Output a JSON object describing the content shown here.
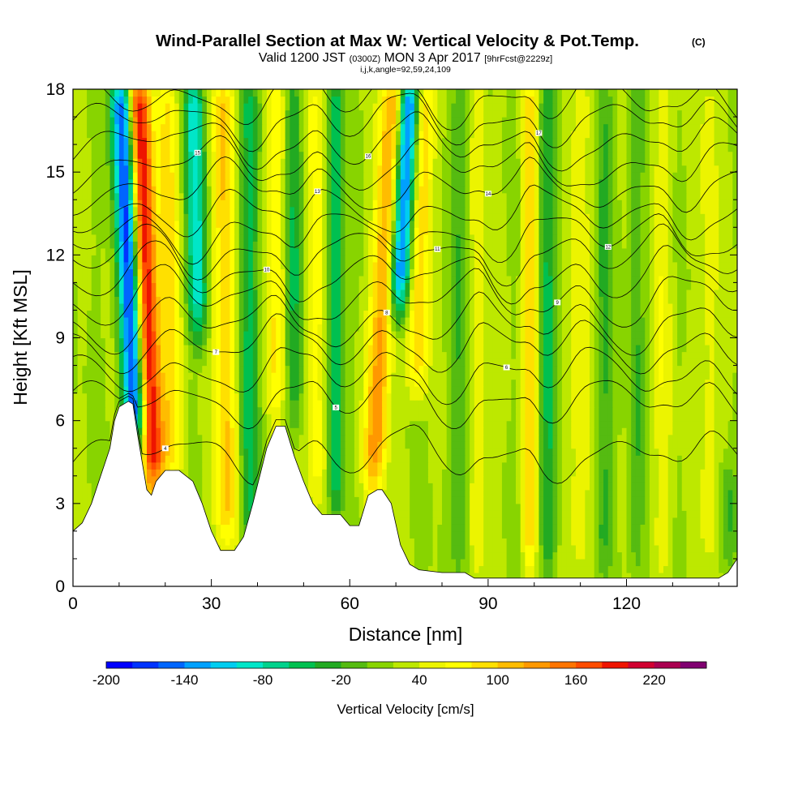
{
  "chart_data": {
    "type": "heatmap",
    "title": "Wind-Parallel Section at Max W: Vertical Velocity & Pot.Temp.",
    "title_mark": "(C)",
    "subtitle_parts": [
      "Valid 1200 JST",
      "(0300Z)",
      "MON 3 Apr 2017",
      "[9hrFcst@2229z]"
    ],
    "subtitle2": "i,j,k,angle=92,59,24,109",
    "xlabel": "Distance [nm]",
    "ylabel": "Height [Kft MSL]",
    "xlim": [
      0,
      144
    ],
    "ylim": [
      0,
      18
    ],
    "xticks": [
      "0",
      "30",
      "60",
      "90",
      "120"
    ],
    "yticks": [
      "0",
      "3",
      "6",
      "9",
      "12",
      "15",
      "18"
    ],
    "colorbar": {
      "label": "Vertical Velocity [cm/s]",
      "range": [
        -200,
        240
      ],
      "step": 20,
      "tick_labels": [
        "-200",
        "-140",
        "-80",
        "-20",
        "40",
        "100",
        "160",
        "220"
      ],
      "colors": [
        "#0000ff",
        "#0033ff",
        "#0066ff",
        "#00a0ff",
        "#00cdf0",
        "#00e6c8",
        "#00d28c",
        "#00c050",
        "#22aa22",
        "#55bb11",
        "#88d400",
        "#bde800",
        "#ecf400",
        "#ffff00",
        "#ffe000",
        "#ffbc00",
        "#ff9800",
        "#ff7400",
        "#ff4c00",
        "#ee1400",
        "#d00030",
        "#aa0050",
        "#800070"
      ]
    },
    "terrain": [
      [
        0,
        2
      ],
      [
        2,
        2.3
      ],
      [
        4,
        3
      ],
      [
        6,
        4
      ],
      [
        8,
        5
      ],
      [
        9,
        6
      ],
      [
        10,
        6.5
      ],
      [
        12,
        6.7
      ],
      [
        13,
        6.6
      ],
      [
        14,
        5.5
      ],
      [
        15,
        4.5
      ],
      [
        16,
        3.5
      ],
      [
        17,
        3.3
      ],
      [
        18,
        3.8
      ],
      [
        20,
        4.2
      ],
      [
        23,
        4.2
      ],
      [
        26,
        3.8
      ],
      [
        28,
        3
      ],
      [
        30,
        2
      ],
      [
        32,
        1.3
      ],
      [
        35,
        1.3
      ],
      [
        37,
        1.8
      ],
      [
        39,
        3
      ],
      [
        42,
        5
      ],
      [
        44,
        5.8
      ],
      [
        46,
        5.8
      ],
      [
        48,
        4.7
      ],
      [
        50,
        3.8
      ],
      [
        52,
        3
      ],
      [
        54,
        2.6
      ],
      [
        58,
        2.6
      ],
      [
        60,
        2.2
      ],
      [
        62,
        2.2
      ],
      [
        64,
        3.3
      ],
      [
        66,
        3.5
      ],
      [
        67,
        3.5
      ],
      [
        69,
        3
      ],
      [
        71,
        1.5
      ],
      [
        73,
        0.8
      ],
      [
        75,
        0.6
      ],
      [
        80,
        0.5
      ],
      [
        85,
        0.5
      ],
      [
        87,
        0.3
      ],
      [
        100,
        0.3
      ],
      [
        120,
        0.3
      ],
      [
        140,
        0.3
      ],
      [
        142,
        0.5
      ],
      [
        144,
        1
      ]
    ],
    "updrafts": [
      {
        "x": 16,
        "width": 2.6,
        "amplitude": 185,
        "ybottom": 3.5,
        "ytop": 18,
        "tilt": -0.25
      },
      {
        "x": 21,
        "width": 2.2,
        "amplitude": 70,
        "ybottom": 4,
        "ytop": 18,
        "tilt": -0.1
      },
      {
        "x": 33,
        "width": 2.5,
        "amplitude": 85,
        "ybottom": 1.5,
        "ytop": 18,
        "tilt": -0.05
      },
      {
        "x": 44,
        "width": 2,
        "amplitude": 55,
        "ybottom": 6,
        "ytop": 18,
        "tilt": 0
      },
      {
        "x": 53,
        "width": 2,
        "amplitude": 50,
        "ybottom": 3,
        "ytop": 18,
        "tilt": -0.05
      },
      {
        "x": 67,
        "width": 2.6,
        "amplitude": 110,
        "ybottom": 3.5,
        "ytop": 18,
        "tilt": 0.3
      },
      {
        "x": 75,
        "width": 2.2,
        "amplitude": 80,
        "ybottom": 7,
        "ytop": 18,
        "tilt": 0.15
      },
      {
        "x": 88,
        "width": 1.8,
        "amplitude": 40,
        "ybottom": 0.5,
        "ytop": 18,
        "tilt": 0
      },
      {
        "x": 99,
        "width": 1.6,
        "amplitude": 75,
        "ybottom": 0.5,
        "ytop": 18,
        "tilt": 0
      },
      {
        "x": 110,
        "width": 2.2,
        "amplitude": 40,
        "ybottom": 0.5,
        "ytop": 18,
        "tilt": 0
      },
      {
        "x": 128,
        "width": 2,
        "amplitude": 35,
        "ybottom": 0.5,
        "ytop": 18,
        "tilt": 0
      },
      {
        "x": 138,
        "width": 2.2,
        "amplitude": 30,
        "ybottom": 0.5,
        "ytop": 18,
        "tilt": 0
      }
    ],
    "downdrafts": [
      {
        "x": 12.5,
        "width": 2.4,
        "amplitude": -200,
        "ybottom": 5,
        "ytop": 18,
        "tilt": -0.25
      },
      {
        "x": 27,
        "width": 2.2,
        "amplitude": -110,
        "ybottom": 9,
        "ytop": 18,
        "tilt": -0.1
      },
      {
        "x": 38,
        "width": 2,
        "amplitude": -70,
        "ybottom": 1.5,
        "ytop": 18,
        "tilt": 0
      },
      {
        "x": 48,
        "width": 1.8,
        "amplitude": -60,
        "ybottom": 6,
        "ytop": 18,
        "tilt": 0
      },
      {
        "x": 57,
        "width": 1.6,
        "amplitude": -80,
        "ybottom": 2.5,
        "ytop": 18,
        "tilt": 0
      },
      {
        "x": 70.5,
        "width": 2.2,
        "amplitude": -185,
        "ybottom": 10,
        "ytop": 18,
        "tilt": 0.3
      },
      {
        "x": 84,
        "width": 1.8,
        "amplitude": -40,
        "ybottom": 0.5,
        "ytop": 18,
        "tilt": 0
      },
      {
        "x": 103,
        "width": 1.8,
        "amplitude": -60,
        "ybottom": 0.5,
        "ytop": 18,
        "tilt": 0
      },
      {
        "x": 115,
        "width": 1.8,
        "amplitude": -45,
        "ybottom": 0.5,
        "ytop": 18,
        "tilt": 0
      },
      {
        "x": 122,
        "width": 1.6,
        "amplitude": -40,
        "ybottom": 0.5,
        "ytop": 18,
        "tilt": 0
      },
      {
        "x": 142,
        "width": 1.8,
        "amplitude": -45,
        "ybottom": 0.5,
        "ytop": 4,
        "tilt": 0
      }
    ],
    "isentropes": {
      "heights_at_x0": [
        4.5,
        6.5,
        7.5,
        8.5,
        9.3,
        10.2,
        11,
        11.8,
        12.5,
        13.3,
        14.2,
        15,
        15.8,
        16.6,
        17.4
      ],
      "label_values": [
        "4",
        "5",
        "6",
        "7",
        "8",
        "9",
        "10",
        "11",
        "12",
        "13",
        "14",
        "15",
        "16",
        "17"
      ]
    }
  }
}
